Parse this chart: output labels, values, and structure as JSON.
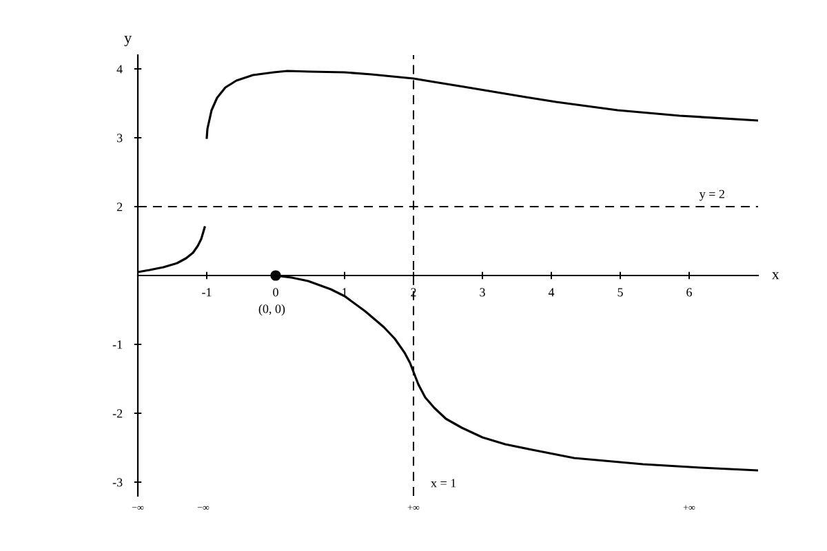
{
  "chart_data": {
    "type": "line",
    "xlabel": "x",
    "y2label": "y",
    "xlim": [
      -2,
      7
    ],
    "ylim": [
      -3.2,
      3.2
    ],
    "y2lim": [
      -2.2,
      4.2
    ],
    "xticks": [
      -1,
      0,
      1,
      2,
      3,
      4,
      5,
      6
    ],
    "yticks": [
      -1,
      -2,
      -3
    ],
    "y2ticks": [
      4,
      3,
      2
    ],
    "line_style": "solid",
    "marker": "none",
    "series": [
      {
        "color": "#000000",
        "x": [
          -2,
          -1.83,
          -1.63,
          -1.43,
          -1.3,
          -1.2,
          -1.13,
          -1.08,
          -1.03
        ],
        "values": [
          0.05,
          0.08,
          0.12,
          0.18,
          0.25,
          0.33,
          0.43,
          0.53,
          0.7
        ]
      },
      {
        "color": "#000000",
        "axis": "y2",
        "x": [
          -1,
          -0.99,
          -0.93,
          -0.85,
          -0.73,
          -0.57,
          -0.33,
          -0.03,
          0.17,
          0.5,
          1,
          1.39,
          2,
          2.3,
          2.73,
          3.63,
          4.07,
          4.96,
          5.86,
          7
        ],
        "values": [
          3,
          3.13,
          3.4,
          3.58,
          3.73,
          3.83,
          3.91,
          3.95,
          3.97,
          3.96,
          3.95,
          3.92,
          3.86,
          3.81,
          3.74,
          3.59,
          3.52,
          3.4,
          3.32,
          3.25
        ]
      },
      {
        "color": "#000000",
        "x": [
          0,
          0.23,
          0.47,
          0.8,
          1,
          1.3,
          1.57,
          1.73,
          1.87,
          1.95,
          2,
          2.07,
          2.17,
          2.3,
          2.47,
          2.7,
          3,
          3.33,
          3.67,
          4.33,
          5.33,
          6.17,
          7
        ],
        "values": [
          0,
          -0.03,
          -0.08,
          -0.2,
          -0.3,
          -0.52,
          -0.75,
          -0.92,
          -1.12,
          -1.27,
          -1.4,
          -1.58,
          -1.77,
          -1.92,
          -2.08,
          -2.21,
          -2.35,
          -2.45,
          -2.52,
          -2.65,
          -2.74,
          -2.79,
          -2.83
        ]
      },
      {
        "type": "scatter",
        "color": "#000000",
        "marker": "circle",
        "x": [
          0
        ],
        "values": [
          0
        ]
      }
    ],
    "ref_lines": [
      {
        "axis": "x",
        "value": 2,
        "line_style": "dashed",
        "color": "#000000"
      },
      {
        "axis": "y2",
        "value": 2,
        "label": "y = 2",
        "line_style": "dashed",
        "color": "#000000"
      }
    ],
    "annotations": [
      {
        "text": "(0, 0)",
        "x": 0,
        "y": 0
      },
      "x = 1",
      "−∞",
      "−∞",
      "+∞",
      "+∞"
    ]
  }
}
